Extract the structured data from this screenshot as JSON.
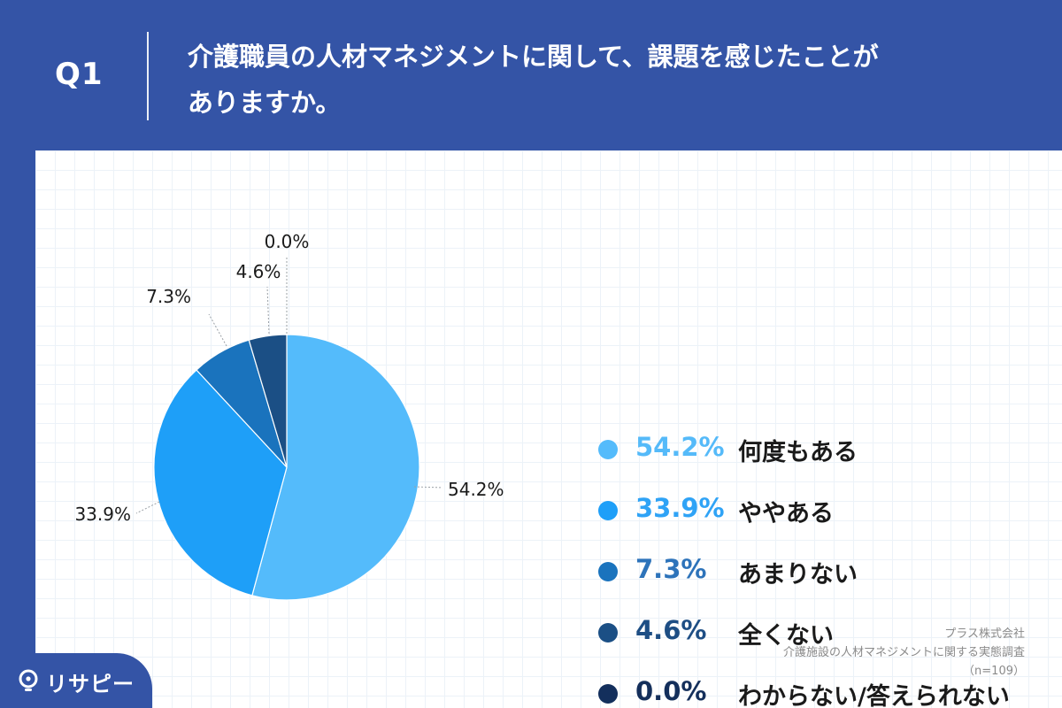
{
  "header": {
    "question_number": "Q1",
    "title_line1": "介護職員の人材マネジメントに関して、課題を感じたことが",
    "title_line2": "ありますか。"
  },
  "chart_data": {
    "type": "pie",
    "categories": [
      "何度もある",
      "ややある",
      "あまりない",
      "全くない",
      "わからない/答えられない"
    ],
    "values": [
      54.2,
      33.9,
      7.3,
      4.6,
      0.0
    ],
    "value_labels": [
      "54.2%",
      "33.9%",
      "7.3%",
      "4.6%",
      "0.0%"
    ],
    "colors": [
      "#54bbfb",
      "#1e9ff8",
      "#1a73bd",
      "#1b4f85",
      "#132f5c"
    ],
    "legend_pct_colors": [
      "#55baf9",
      "#2fa3f6",
      "#2d73ba",
      "#1e4e84",
      "#142f5b"
    ],
    "legend_placement": "right"
  },
  "legend": [
    {
      "pct": "54.2%",
      "label": "何度もある"
    },
    {
      "pct": "33.9%",
      "label": "ややある"
    },
    {
      "pct": "7.3%",
      "label": "あまりない"
    },
    {
      "pct": "4.6%",
      "label": "全くない"
    },
    {
      "pct": "0.0%",
      "label": "わからない/答えられない"
    }
  ],
  "source": {
    "company": "プラス株式会社",
    "survey": "介護施設の人材マネジメントに関する実態調査",
    "sample": "（n=109）"
  },
  "brand": {
    "name": "リサピー"
  },
  "theme": {
    "background": "#3454a6",
    "card": "#ffffff"
  }
}
